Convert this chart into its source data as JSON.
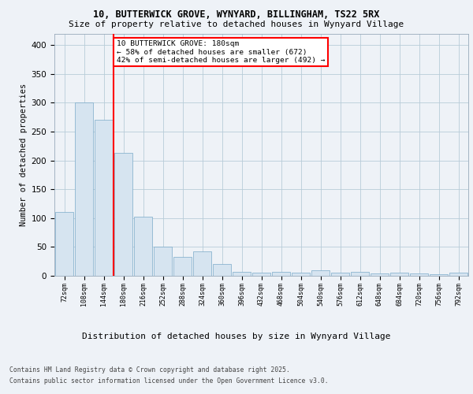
{
  "title1": "10, BUTTERWICK GROVE, WYNYARD, BILLINGHAM, TS22 5RX",
  "title2": "Size of property relative to detached houses in Wynyard Village",
  "xlabel": "Distribution of detached houses by size in Wynyard Village",
  "ylabel": "Number of detached properties",
  "footer1": "Contains HM Land Registry data © Crown copyright and database right 2025.",
  "footer2": "Contains public sector information licensed under the Open Government Licence v3.0.",
  "annotation_title": "10 BUTTERWICK GROVE: 180sqm",
  "annotation_line2": "← 58% of detached houses are smaller (672)",
  "annotation_line3": "42% of semi-detached houses are larger (492) →",
  "bar_fill": "#d6e4f0",
  "bar_edge": "#7aaac8",
  "bar_linewidth": 0.5,
  "categories": [
    "72sqm",
    "108sqm",
    "144sqm",
    "180sqm",
    "216sqm",
    "252sqm",
    "288sqm",
    "324sqm",
    "360sqm",
    "396sqm",
    "432sqm",
    "468sqm",
    "504sqm",
    "540sqm",
    "576sqm",
    "612sqm",
    "648sqm",
    "684sqm",
    "720sqm",
    "756sqm",
    "792sqm"
  ],
  "values": [
    110,
    300,
    270,
    213,
    102,
    50,
    33,
    42,
    20,
    7,
    6,
    7,
    6,
    10,
    6,
    7,
    4,
    6,
    4,
    3,
    5
  ],
  "ylim": [
    0,
    420
  ],
  "yticks": [
    0,
    50,
    100,
    150,
    200,
    250,
    300,
    350,
    400
  ],
  "vline_index": 3,
  "bg_color": "#eef2f7",
  "plot_bg": "#eef2f7",
  "grid_color": "#b8ccd8",
  "title1_fontsize": 8.5,
  "title2_fontsize": 8.0,
  "ylabel_fontsize": 7.5,
  "xlabel_fontsize": 8.0,
  "xtick_fontsize": 6.0,
  "ytick_fontsize": 7.5,
  "annot_fontsize": 6.8,
  "footer_fontsize": 5.8
}
